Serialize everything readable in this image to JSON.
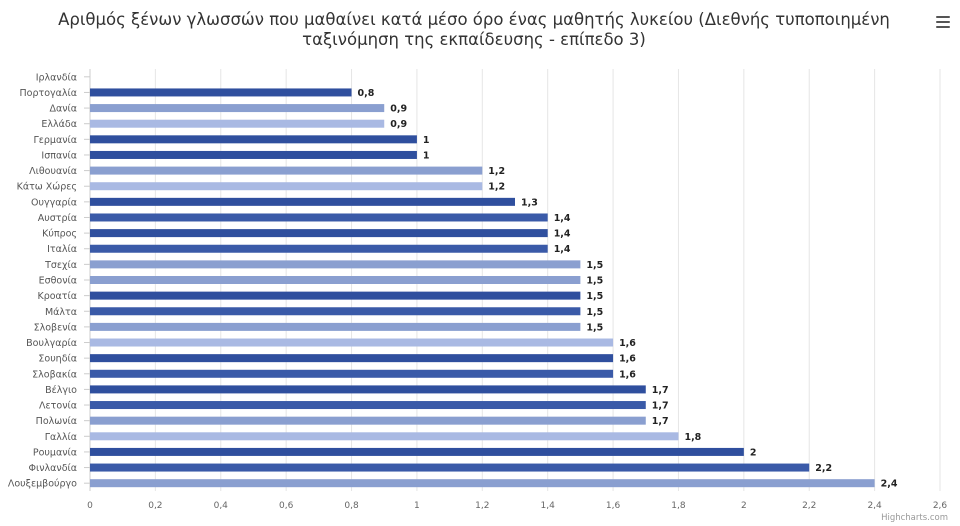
{
  "chart_data": {
    "type": "bar",
    "orientation": "horizontal",
    "title": "Αριθμός ξένων γλωσσών που μαθαίνει κατά μέσο όρο ένας μαθητής λυκείου (Διεθνής τυποποιημένη ταξινόμηση της εκπαίδευσης - επίπεδο 3)",
    "categories": [
      "Ιρλανδία",
      "Πορτογαλία",
      "Δανία",
      "Ελλάδα",
      "Γερμανία",
      "Ισπανία",
      "Λιθουανία",
      "Κάτω Χώρες",
      "Ουγγαρία",
      "Αυστρία",
      "Κύπρος",
      "Ιταλία",
      "Τσεχία",
      "Εσθονία",
      "Κροατία",
      "Μάλτα",
      "Σλοβενία",
      "Βουλγαρία",
      "Σουηδία",
      "Σλοβακία",
      "Βέλγιο",
      "Λετονία",
      "Πολωνία",
      "Γαλλία",
      "Ρουμανία",
      "Φινλανδία",
      "Λουξεμβούργο"
    ],
    "values": [
      null,
      0.8,
      0.9,
      0.9,
      1,
      1,
      1.2,
      1.2,
      1.3,
      1.4,
      1.4,
      1.4,
      1.5,
      1.5,
      1.5,
      1.5,
      1.5,
      1.6,
      1.6,
      1.6,
      1.7,
      1.7,
      1.7,
      1.8,
      2,
      2.2,
      2.4
    ],
    "data_labels": [
      "",
      "0,8",
      "0,9",
      "0,9",
      "1",
      "1",
      "1,2",
      "1,2",
      "1,3",
      "1,4",
      "1,4",
      "1,4",
      "1,5",
      "1,5",
      "1,5",
      "1,5",
      "1,5",
      "1,6",
      "1,6",
      "1,6",
      "1,7",
      "1,7",
      "1,7",
      "1,8",
      "2",
      "2,2",
      "2,4"
    ],
    "bar_colors": [
      "#2f4f9e",
      "#2f4f9e",
      "#8a9fd0",
      "#a9b9e3",
      "#2f4f9e",
      "#2f4f9e",
      "#8a9fd0",
      "#a9b9e3",
      "#2f4f9e",
      "#3a5aa8",
      "#2f4f9e",
      "#3a5aa8",
      "#8a9fd0",
      "#8a9fd0",
      "#2f4f9e",
      "#3a5aa8",
      "#8a9fd0",
      "#a9b9e3",
      "#2f4f9e",
      "#3a5aa8",
      "#2f4f9e",
      "#3a5aa8",
      "#8a9fd0",
      "#a9b9e3",
      "#2f4f9e",
      "#3a5aa8",
      "#8a9fd0"
    ],
    "xlim": [
      0,
      2.6
    ],
    "x_ticks": [
      "0",
      "0,2",
      "0,4",
      "0,6",
      "0,8",
      "1",
      "1,2",
      "1,4",
      "1,6",
      "1,8",
      "2",
      "2,2",
      "2,4",
      "2,6"
    ],
    "grid": true,
    "legend": false
  },
  "credits": "Highcharts.com",
  "menu_icon": "hamburger-menu-icon"
}
